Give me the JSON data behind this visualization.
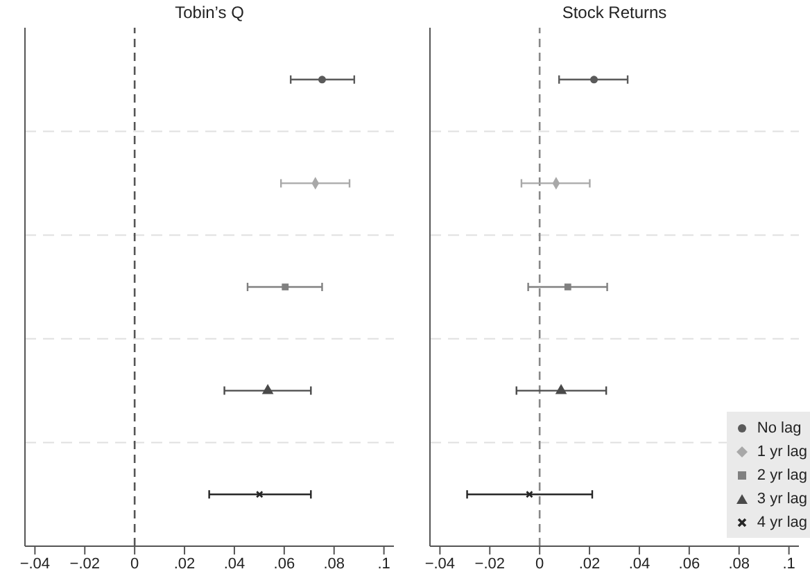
{
  "chart_data": [
    {
      "type": "scatter",
      "orientation": "horizontal",
      "title": "Tobin’s Q",
      "categories": [
        null,
        null,
        null,
        null,
        null
      ],
      "series": [
        {
          "color": "#5a5a5a",
          "marker": "circle",
          "values": [
            0.0752,
            null,
            null,
            null,
            null
          ],
          "errors": [
            [
              0.0626,
              0.0881
            ],
            null,
            null,
            null,
            null
          ]
        },
        {
          "color": "#a8a8a8",
          "marker": "diamond",
          "values": [
            null,
            0.0725,
            null,
            null,
            null
          ],
          "errors": [
            null,
            [
              0.0587,
              0.0862
            ],
            null,
            null,
            null
          ]
        },
        {
          "color": "#808080",
          "marker": "square",
          "values": [
            null,
            null,
            0.0604,
            null,
            null
          ],
          "errors": [
            null,
            null,
            [
              0.0453,
              0.0752
            ],
            null,
            null
          ]
        },
        {
          "color": "#4a4a4a",
          "marker": "triangle",
          "values": [
            null,
            null,
            null,
            0.0534,
            null
          ],
          "errors": [
            null,
            null,
            null,
            [
              0.036,
              0.0707
            ],
            null
          ]
        },
        {
          "color": "#262626",
          "marker": "cross",
          "values": [
            null,
            null,
            null,
            null,
            0.0501
          ],
          "errors": [
            null,
            null,
            null,
            null,
            [
              0.0299,
              0.0707
            ]
          ]
        }
      ],
      "xlim": [
        -0.044,
        0.104
      ],
      "xticks": [
        {
          "value": -0.04,
          "label": "−.04"
        },
        {
          "value": -0.02,
          "label": "−.02"
        },
        0,
        {
          "value": 0.02,
          "label": ".02"
        },
        {
          "value": 0.04,
          "label": ".04"
        },
        {
          "value": 0.06,
          "label": ".06"
        },
        {
          "value": 0.08,
          "label": ".08"
        },
        {
          "value": 0.1,
          "label": ".1"
        }
      ],
      "grid": "y",
      "tick_labels": "x",
      "legend": false,
      "ref_lines": [
        {
          "axis": "x",
          "value": 0,
          "color": "#555555",
          "line_style": "dashed"
        }
      ]
    },
    {
      "type": "scatter",
      "orientation": "horizontal",
      "title": "Stock Returns",
      "categories": [
        null,
        null,
        null,
        null,
        null
      ],
      "series": [
        {
          "name": "No lag",
          "color": "#5a5a5a",
          "marker": "circle",
          "values": [
            0.0218,
            null,
            null,
            null,
            null
          ],
          "errors": [
            [
              0.0078,
              0.0353
            ],
            null,
            null,
            null,
            null
          ]
        },
        {
          "name": "1 yr lag",
          "color": "#a8a8a8",
          "marker": "diamond",
          "values": [
            null,
            0.0066,
            null,
            null,
            null
          ],
          "errors": [
            null,
            [
              -0.0073,
              0.0201
            ],
            null,
            null,
            null
          ]
        },
        {
          "name": "2 yr lag",
          "color": "#808080",
          "marker": "square",
          "values": [
            null,
            null,
            0.0113,
            null,
            null
          ],
          "errors": [
            null,
            null,
            [
              -0.0046,
              0.0271
            ],
            null,
            null
          ]
        },
        {
          "name": "3 yr lag",
          "color": "#4a4a4a",
          "marker": "triangle",
          "values": [
            null,
            null,
            null,
            0.0086,
            null
          ],
          "errors": [
            null,
            null,
            null,
            [
              -0.0093,
              0.0267
            ],
            null
          ]
        },
        {
          "name": "4 yr lag",
          "color": "#262626",
          "marker": "cross",
          "values": [
            null,
            null,
            null,
            null,
            -0.0041
          ],
          "errors": [
            null,
            null,
            null,
            null,
            [
              -0.0291,
              0.0211
            ]
          ]
        }
      ],
      "xlim": [
        -0.044,
        0.104
      ],
      "xticks": [
        {
          "value": -0.04,
          "label": "−.04"
        },
        {
          "value": -0.02,
          "label": "−.02"
        },
        0,
        {
          "value": 0.02,
          "label": ".02"
        },
        {
          "value": 0.04,
          "label": ".04"
        },
        {
          "value": 0.06,
          "label": ".06"
        },
        {
          "value": 0.08,
          "label": ".08"
        },
        {
          "value": 0.1,
          "label": ".1"
        }
      ],
      "grid": "y",
      "tick_labels": "x",
      "legend": "bottom right",
      "ref_lines": [
        {
          "axis": "x",
          "value": 0,
          "color": "#888888",
          "line_style": "dashed"
        }
      ]
    }
  ]
}
